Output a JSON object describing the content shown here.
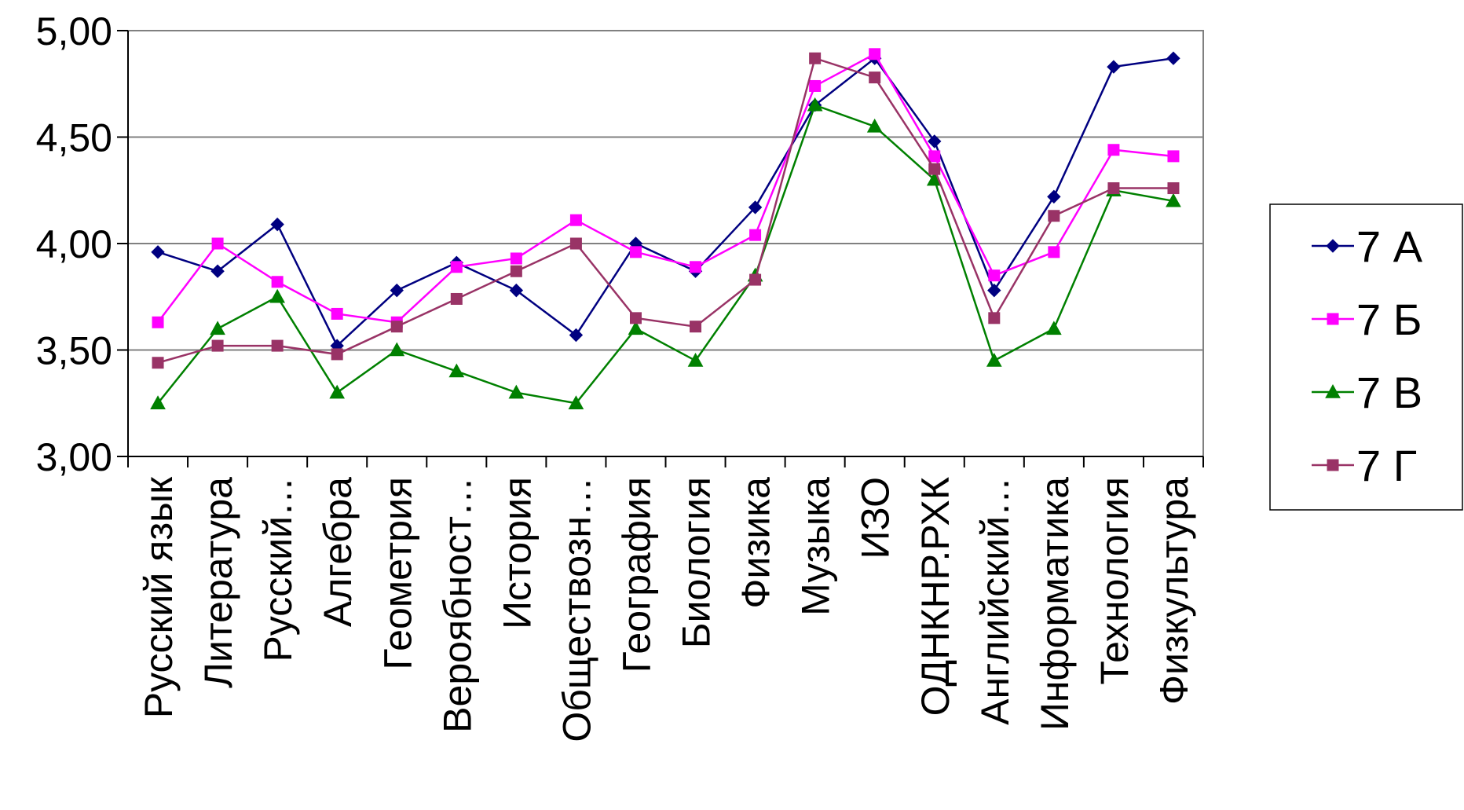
{
  "chart_data": {
    "type": "line",
    "categories": [
      "Русский язык",
      "Литература",
      "Русский…",
      "Алгебра",
      "Геометрия",
      "Вероябност…",
      "История",
      "Обществозн…",
      "География",
      "Биология",
      "Физика",
      "Музыка",
      "ИЗО",
      "ОДНКНР.РХК",
      "Английский…",
      "Информатика",
      "Технология",
      "Физкультура"
    ],
    "ylim": [
      3.0,
      5.0
    ],
    "yticks": [
      "3,00",
      "3,50",
      "4,00",
      "4,50",
      "5,00"
    ],
    "ytick_values": [
      3.0,
      3.5,
      4.0,
      4.5,
      5.0
    ],
    "grid": true,
    "legend_position": "right",
    "series": [
      {
        "name": "7 А",
        "color": "#000080",
        "marker": "diamond",
        "values": [
          3.96,
          3.87,
          4.09,
          3.52,
          3.78,
          3.91,
          3.78,
          3.57,
          4.0,
          3.87,
          4.17,
          4.65,
          4.87,
          4.48,
          3.78,
          4.22,
          4.83,
          4.87
        ]
      },
      {
        "name": "7 Б",
        "color": "#FF00FF",
        "marker": "square",
        "values": [
          3.63,
          4.0,
          3.82,
          3.67,
          3.63,
          3.89,
          3.93,
          4.11,
          3.96,
          3.89,
          4.04,
          4.74,
          4.89,
          4.41,
          3.85,
          3.96,
          4.44,
          4.41
        ]
      },
      {
        "name": "7 В",
        "color": "#008000",
        "marker": "triangle",
        "values": [
          3.25,
          3.6,
          3.75,
          3.3,
          3.5,
          3.4,
          3.3,
          3.25,
          3.6,
          3.45,
          3.85,
          4.65,
          4.55,
          4.3,
          3.45,
          3.6,
          4.25,
          4.2
        ]
      },
      {
        "name": "7 Г",
        "color": "#993366",
        "marker": "square",
        "values": [
          3.44,
          3.52,
          3.52,
          3.48,
          3.61,
          3.74,
          3.87,
          4.0,
          3.65,
          3.61,
          3.83,
          4.87,
          4.78,
          4.35,
          3.65,
          4.13,
          4.26,
          4.26
        ]
      }
    ]
  }
}
